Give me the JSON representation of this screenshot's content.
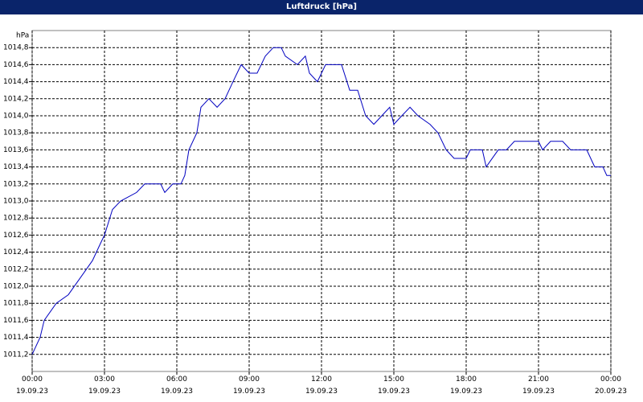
{
  "chart_data": {
    "type": "line",
    "title": "Luftdruck [hPa]",
    "y_label": "hPa",
    "x": [
      0,
      0.33,
      0.5,
      1.0,
      1.5,
      2.0,
      2.5,
      2.83,
      3.0,
      3.33,
      3.67,
      4.33,
      4.67,
      5.33,
      5.5,
      5.83,
      6.17,
      6.33,
      6.5,
      6.83,
      7.0,
      7.33,
      7.67,
      8.0,
      8.33,
      8.67,
      9.0,
      9.33,
      9.67,
      10.0,
      10.33,
      10.5,
      11.0,
      11.33,
      11.5,
      11.83,
      12.17,
      12.83,
      13.17,
      13.5,
      13.83,
      14.17,
      14.5,
      14.83,
      15.0,
      15.33,
      15.67,
      16.0,
      16.5,
      16.83,
      17.17,
      17.5,
      18.0,
      18.17,
      18.67,
      18.83,
      19.33,
      19.67,
      20.0,
      21.0,
      21.17,
      21.5,
      22.0,
      22.33,
      23.0,
      23.33,
      23.67,
      23.83,
      24.0
    ],
    "series": [
      {
        "name": "Luftdruck",
        "color": "#0000c0",
        "values": [
          1011.2,
          1011.4,
          1011.6,
          1011.8,
          1011.9,
          1012.1,
          1012.3,
          1012.5,
          1012.6,
          1012.9,
          1013.0,
          1013.1,
          1013.2,
          1013.2,
          1013.1,
          1013.2,
          1013.2,
          1013.3,
          1013.6,
          1013.8,
          1014.1,
          1014.2,
          1014.1,
          1014.2,
          1014.4,
          1014.6,
          1014.5,
          1014.5,
          1014.7,
          1014.8,
          1014.8,
          1014.7,
          1014.6,
          1014.7,
          1014.5,
          1014.4,
          1014.6,
          1014.6,
          1014.3,
          1014.3,
          1014.0,
          1013.9,
          1014.0,
          1014.1,
          1013.9,
          1014.0,
          1014.1,
          1014.0,
          1013.9,
          1013.8,
          1013.6,
          1013.5,
          1013.5,
          1013.6,
          1013.6,
          1013.4,
          1013.6,
          1013.6,
          1013.7,
          1013.7,
          1013.6,
          1013.7,
          1013.7,
          1013.6,
          1013.6,
          1013.4,
          1013.4,
          1013.3,
          1013.3
        ]
      }
    ],
    "xlim": [
      0,
      24
    ],
    "xticks": [
      {
        "value": 0,
        "label": "00:00\n19.09.23"
      },
      {
        "value": 3,
        "label": "03:00\n19.09.23"
      },
      {
        "value": 6,
        "label": "06:00\n19.09.23"
      },
      {
        "value": 9,
        "label": "09:00\n19.09.23"
      },
      {
        "value": 12,
        "label": "12:00\n19.09.23"
      },
      {
        "value": 15,
        "label": "15:00\n19.09.23"
      },
      {
        "value": 18,
        "label": "18:00\n19.09.23"
      },
      {
        "value": 21,
        "label": "21:00\n19.09.23"
      },
      {
        "value": 24,
        "label": "00:00\n20.09.23"
      }
    ],
    "ylim": [
      1011.0,
      1015.0
    ],
    "yticks": [
      {
        "value": 1011.2,
        "label": "1011,2"
      },
      {
        "value": 1011.4,
        "label": "1011,4"
      },
      {
        "value": 1011.6,
        "label": "1011,6"
      },
      {
        "value": 1011.8,
        "label": "1011,8"
      },
      {
        "value": 1012.0,
        "label": "1012,0"
      },
      {
        "value": 1012.2,
        "label": "1012,2"
      },
      {
        "value": 1012.4,
        "label": "1012,4"
      },
      {
        "value": 1012.6,
        "label": "1012,6"
      },
      {
        "value": 1012.8,
        "label": "1012,8"
      },
      {
        "value": 1013.0,
        "label": "1013,0"
      },
      {
        "value": 1013.2,
        "label": "1013,2"
      },
      {
        "value": 1013.4,
        "label": "1013,4"
      },
      {
        "value": 1013.6,
        "label": "1013,6"
      },
      {
        "value": 1013.8,
        "label": "1013,8"
      },
      {
        "value": 1014.0,
        "label": "1014,0"
      },
      {
        "value": 1014.2,
        "label": "1014,2"
      },
      {
        "value": 1014.4,
        "label": "1014,4"
      },
      {
        "value": 1014.6,
        "label": "1014,6"
      },
      {
        "value": 1014.8,
        "label": "1014,8"
      }
    ],
    "grid": true
  }
}
